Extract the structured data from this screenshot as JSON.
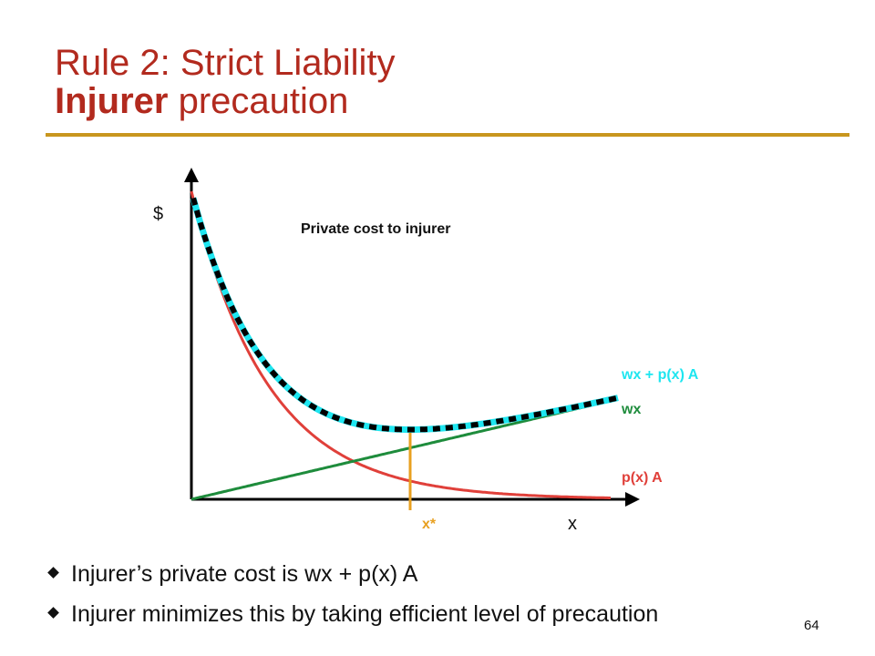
{
  "slide": {
    "title_line1": "Rule 2: Strict Liability",
    "title_line2_bold": "Injurer",
    "title_line2_rest": " precaution",
    "page_number": "64"
  },
  "diagram": {
    "y_axis_label": "$",
    "x_axis_label": "x",
    "chart_title": "Private cost to injurer",
    "optimum_label": "x*",
    "curves": [
      {
        "name": "total",
        "label": "wx + p(x) A",
        "color": "#1ee6f0"
      },
      {
        "name": "precaution",
        "label": "wx",
        "color": "#1e8c3c"
      },
      {
        "name": "accident",
        "label": "p(x) A",
        "color": "#e0403a"
      }
    ],
    "optimum_line_color": "#e8a020"
  },
  "bullets": [
    "Injurer’s private cost is wx + p(x) A",
    "Injurer minimizes this by taking efficient level of precaution"
  ]
}
